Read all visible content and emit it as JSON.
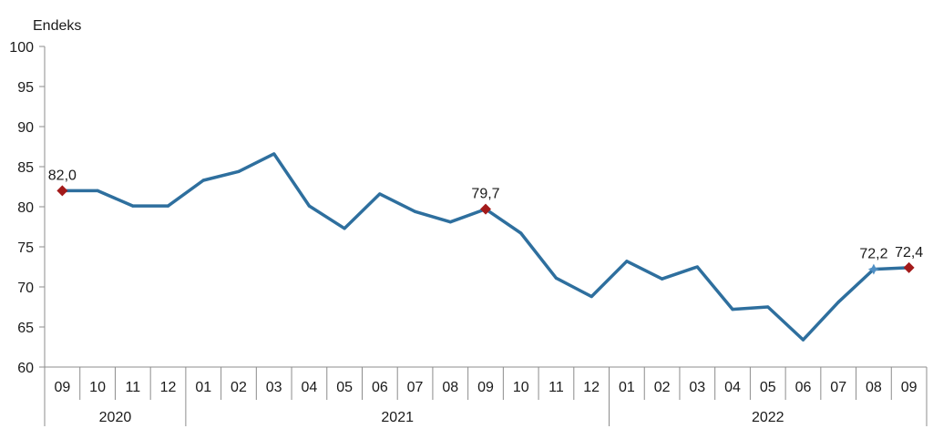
{
  "chart_data": {
    "type": "line",
    "ylabel": "Endeks",
    "ylim": [
      60,
      100
    ],
    "yticks": [
      60,
      65,
      70,
      75,
      80,
      85,
      90,
      95,
      100
    ],
    "grid": false,
    "categories": [
      "09",
      "10",
      "11",
      "12",
      "01",
      "02",
      "03",
      "04",
      "05",
      "06",
      "07",
      "08",
      "09",
      "10",
      "11",
      "12",
      "01",
      "02",
      "03",
      "04",
      "05",
      "06",
      "07",
      "08",
      "09"
    ],
    "year_groups": [
      {
        "label": "2020",
        "count": 4
      },
      {
        "label": "2021",
        "count": 12
      },
      {
        "label": "2022",
        "count": 9
      }
    ],
    "series": [
      {
        "values": [
          82.0,
          82.0,
          80.1,
          80.1,
          83.3,
          84.4,
          86.6,
          80.1,
          77.3,
          81.6,
          79.4,
          78.1,
          79.7,
          76.7,
          71.1,
          68.8,
          73.2,
          71.0,
          72.5,
          67.2,
          67.5,
          63.4,
          68.1,
          72.2,
          72.4
        ],
        "color": "#2e6f9e"
      }
    ],
    "annotations": [
      {
        "index": 0,
        "label": "82,0",
        "marker": "diamond",
        "color": "#a31a1a"
      },
      {
        "index": 12,
        "label": "79,7",
        "marker": "diamond",
        "color": "#a31a1a"
      },
      {
        "index": 23,
        "label": "72,2",
        "marker": "star",
        "color": "#4f8fc4"
      },
      {
        "index": 24,
        "label": "72,4",
        "marker": "diamond",
        "color": "#a31a1a"
      }
    ]
  }
}
